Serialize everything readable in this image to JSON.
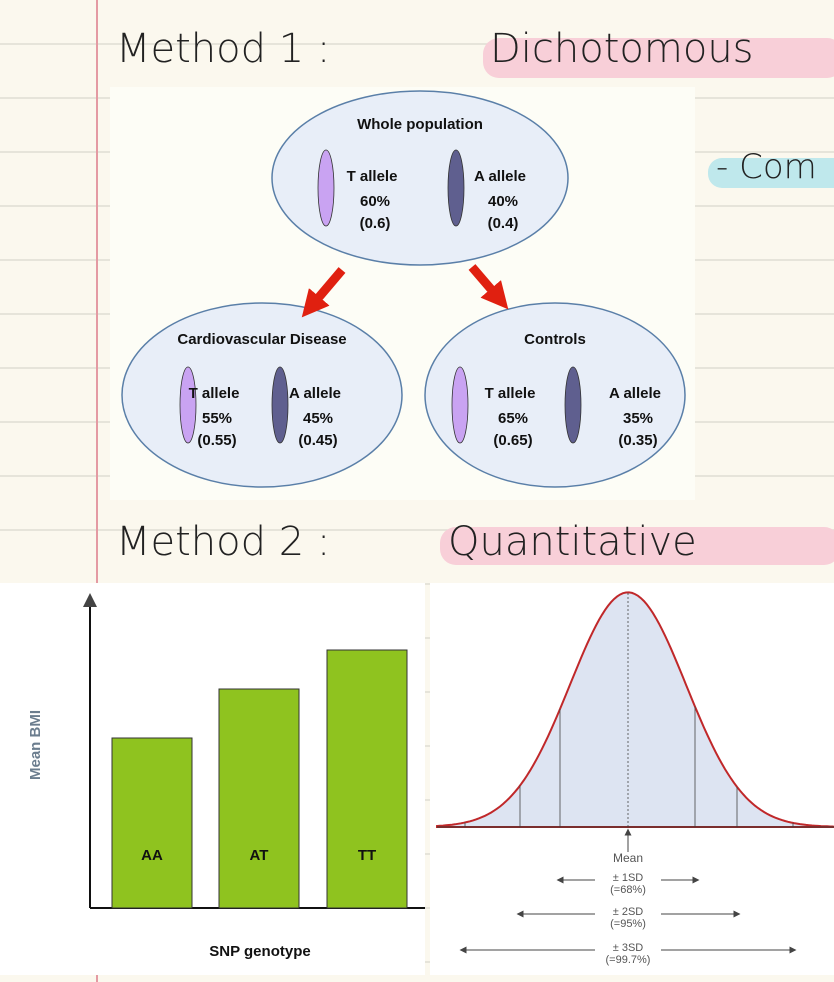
{
  "notes": {
    "method1": {
      "label": "Method 1 :",
      "highlight": "Dichotomous",
      "sub": "- Com"
    },
    "method2": {
      "label": "Method 2 :",
      "highlight": "Quantitative"
    }
  },
  "diagram": {
    "top": {
      "title": "Whole population",
      "alleles": [
        {
          "name": "T allele",
          "percent": "60%",
          "freq": "(0.6)"
        },
        {
          "name": "A allele",
          "percent": "40%",
          "freq": "(0.4)"
        }
      ]
    },
    "left": {
      "title": "Cardiovascular Disease",
      "alleles": [
        {
          "name": "T allele",
          "percent": "55%",
          "freq": "(0.55)"
        },
        {
          "name": "A allele",
          "percent": "45%",
          "freq": "(0.45)"
        }
      ]
    },
    "right": {
      "title": "Controls",
      "alleles": [
        {
          "name": "T allele",
          "percent": "65%",
          "freq": "(0.65)"
        },
        {
          "name": "A allele",
          "percent": "35%",
          "freq": "(0.35)"
        }
      ]
    }
  },
  "bar_figure": {
    "y_label": "Mean BMI",
    "x_label": "SNP genotype",
    "bars": [
      "AA",
      "AT",
      "TT"
    ]
  },
  "curve_figure": {
    "mean": "Mean",
    "ranges": [
      {
        "label": "± 1SD",
        "percent": "(=68%)"
      },
      {
        "label": "± 2SD",
        "percent": "(=95%)"
      },
      {
        "label": "± 3SD",
        "percent": "(=99.7%)"
      }
    ]
  }
}
